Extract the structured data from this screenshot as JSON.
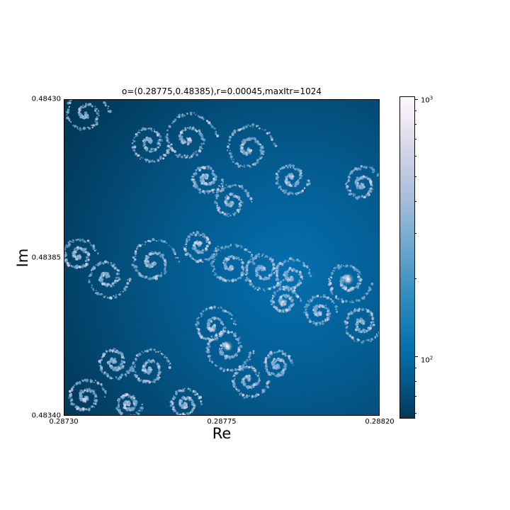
{
  "chart_data": {
    "type": "heatmap",
    "title": "o=(0.28775,0.48385),r=0.00045,maxItr=1024",
    "xlabel": "Re",
    "ylabel": "Im",
    "xlim": [
      0.2873,
      0.2882
    ],
    "ylim": [
      0.4834,
      0.4843
    ],
    "x_ticks": [
      "0.28730",
      "0.28775",
      "0.28820"
    ],
    "y_ticks": [
      "0.48430",
      "0.48385",
      "0.48340"
    ],
    "colorbar": {
      "scale": "log",
      "range": [
        57,
        1024
      ],
      "colormap": "PuBu_r",
      "tick_labels": [
        {
          "base": "10",
          "exp": "3",
          "value": 1000
        },
        {
          "base": "10",
          "exp": "2",
          "value": 100
        }
      ]
    }
  }
}
